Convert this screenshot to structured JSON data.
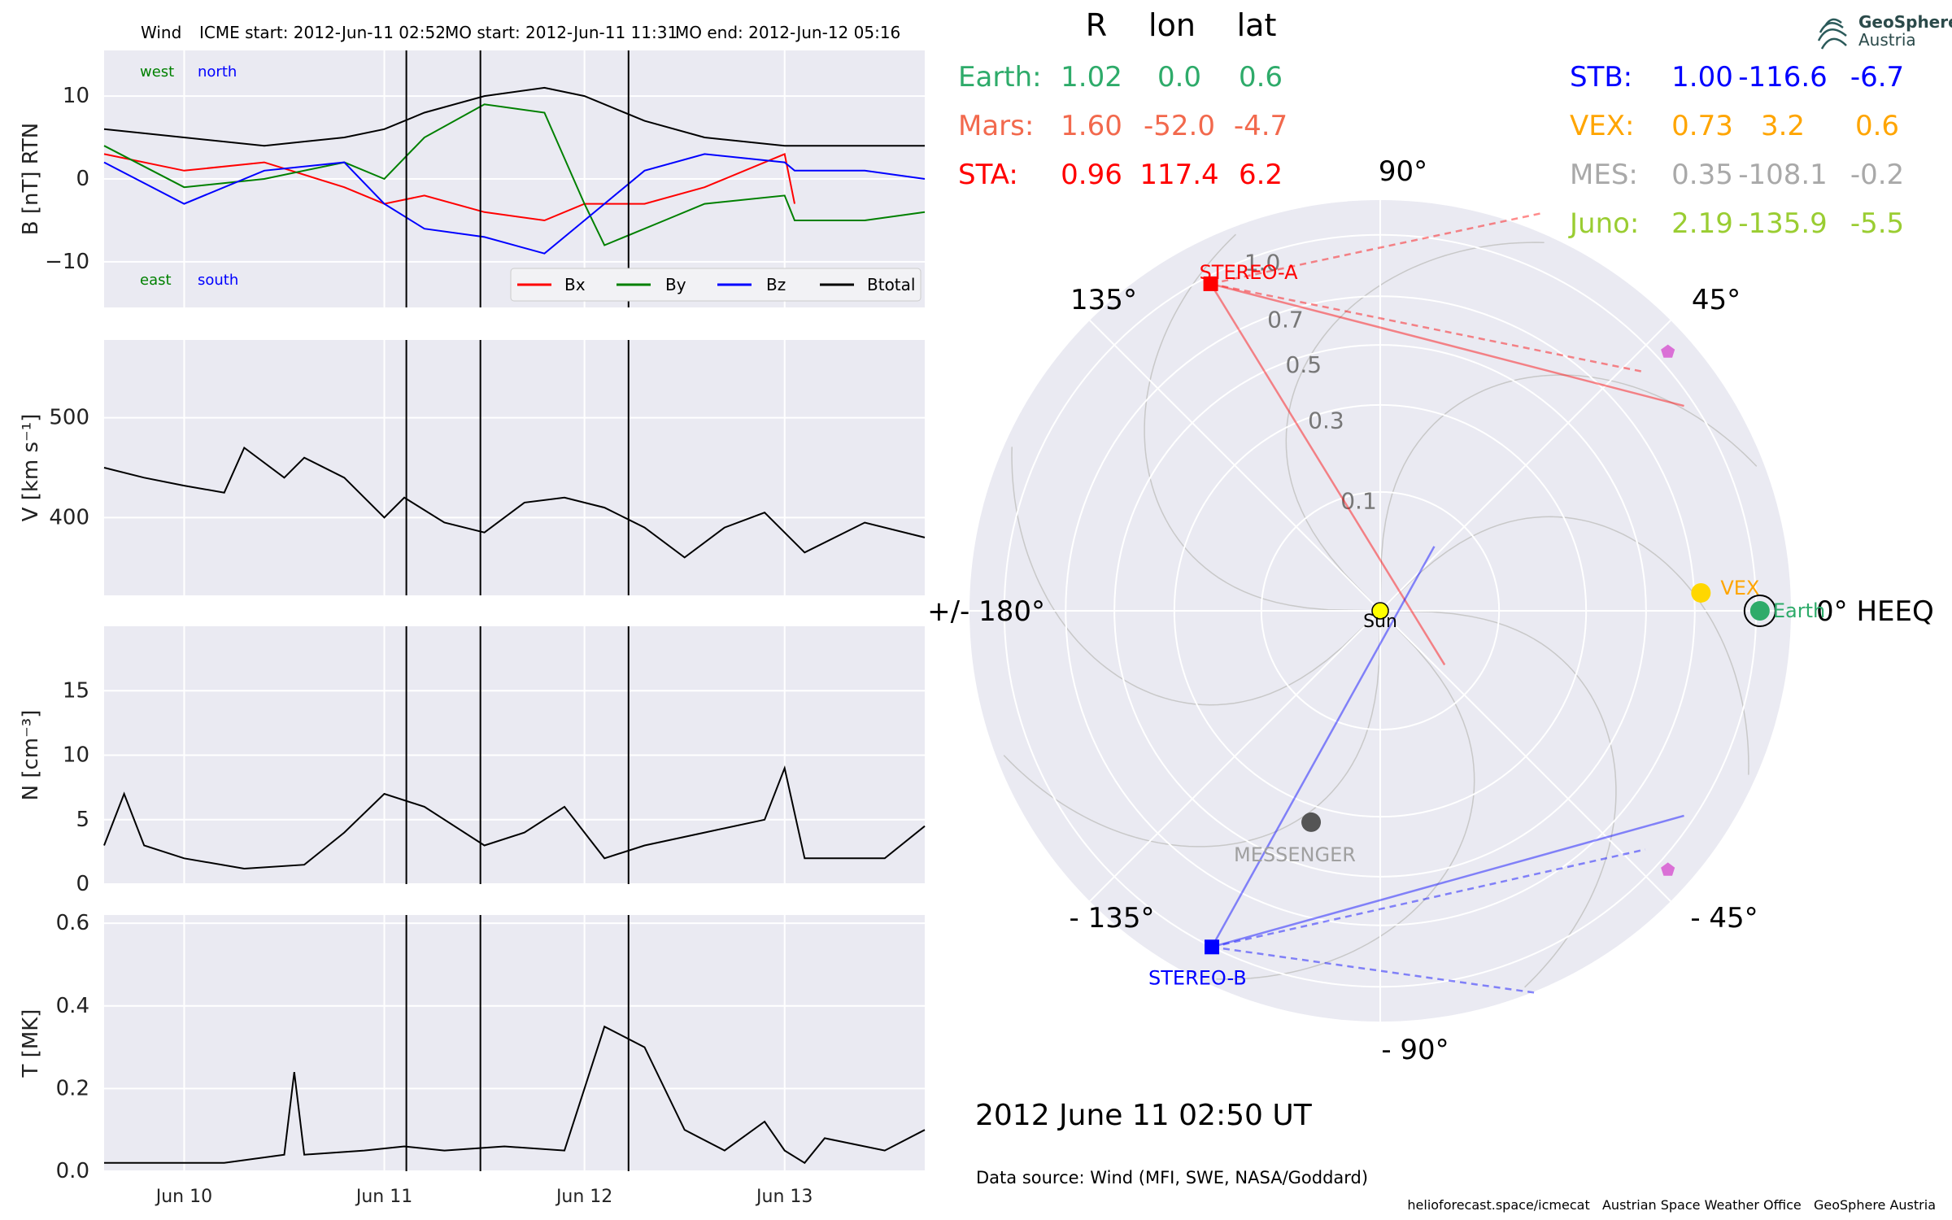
{
  "header": {
    "spacecraft": "Wind",
    "icme_start": "ICME start: 2012-Jun-11 02:52",
    "mo_start": "MO start: 2012-Jun-11 11:31",
    "mo_end": "MO end: 2012-Jun-12 05:16"
  },
  "table": {
    "columns": [
      "R",
      "lon",
      "lat"
    ],
    "left": [
      {
        "name": "Earth:",
        "R": "1.02",
        "lon": "0.0",
        "lat": "0.6",
        "color": "#2eab6a"
      },
      {
        "name": "Mars:",
        "R": "1.60",
        "lon": "-52.0",
        "lat": "-4.7",
        "color": "#f2694d"
      },
      {
        "name": "STA:",
        "R": "0.96",
        "lon": "117.4",
        "lat": "6.2",
        "color": "#ff0000"
      }
    ],
    "right": [
      {
        "name": "STB:",
        "R": "1.00",
        "lon": "-116.6",
        "lat": "-6.7",
        "color": "#0000ff"
      },
      {
        "name": "VEX:",
        "R": "0.73",
        "lon": "3.2",
        "lat": "0.6",
        "color": "#ffa500"
      },
      {
        "name": "MES:",
        "R": "0.35",
        "lon": "-108.1",
        "lat": "-0.2",
        "color": "#a9a9a9"
      },
      {
        "name": "Juno:",
        "R": "2.19",
        "lon": "-135.9",
        "lat": "-5.5",
        "color": "#9acd32"
      }
    ]
  },
  "logo": {
    "name": "GeoSphere",
    "sub": "Austria"
  },
  "polar": {
    "angle_labels": {
      "a90": "90°",
      "a45": "45°",
      "a0": "0° HEEQ",
      "am45": "- 45°",
      "am90": "- 90°",
      "am135": "- 135°",
      "a180": "+/- 180°",
      "a135": "135°"
    },
    "radial_labels": [
      "0.1",
      "0.3",
      "0.5",
      "0.7",
      "1.0"
    ],
    "radial_values": [
      0.1,
      0.3,
      0.5,
      0.7,
      1.0
    ],
    "bodies": {
      "sun": "Sun",
      "vex": "VEX",
      "earth": "Earth",
      "sta": "STEREO-A",
      "stb": "STEREO-B",
      "mes": "MESSENGER"
    },
    "colors": {
      "sta": "#ff0000",
      "stb": "#0000ff",
      "earth": "#2eab6a",
      "vex": "#ffa500",
      "mes": "#555555",
      "juno": "#da70d6",
      "sun": "#ffff00"
    }
  },
  "date": "2012 June 11  02:50 UT",
  "source": "Data source: Wind (MFI, SWE, NASA/Goddard)",
  "footer": "helioforecast.space/icmecat   Austrian Space Weather Office   GeoSphere Austria",
  "chart_data": [
    {
      "type": "line",
      "ylabel": "B [nT] RTN",
      "yticks": [
        -10,
        0,
        10
      ],
      "ylim": [
        -15.5,
        15.5
      ],
      "xticks": [
        "Jun 10",
        "Jun 11",
        "Jun 12",
        "Jun 13"
      ],
      "corner_labels": {
        "west": "west",
        "north": "north",
        "east": "east",
        "south": "south"
      },
      "legend": [
        "Bx",
        "By",
        "Bz",
        "Btotal"
      ],
      "series": [
        {
          "name": "Bx",
          "color": "#ff0000",
          "values": [
            [
              -0.4,
              3
            ],
            [
              0,
              1
            ],
            [
              0.4,
              2
            ],
            [
              0.8,
              -1
            ],
            [
              1.0,
              -3
            ],
            [
              1.2,
              -2
            ],
            [
              1.5,
              -4
            ],
            [
              1.8,
              -5
            ],
            [
              2.0,
              -3
            ],
            [
              2.3,
              -3
            ],
            [
              2.6,
              -1
            ],
            [
              3.0,
              3
            ],
            [
              3.05,
              -3
            ]
          ]
        },
        {
          "name": "By",
          "color": "#008000",
          "values": [
            [
              -0.4,
              4
            ],
            [
              0,
              -1
            ],
            [
              0.4,
              0
            ],
            [
              0.8,
              2
            ],
            [
              1.0,
              0
            ],
            [
              1.2,
              5
            ],
            [
              1.5,
              9
            ],
            [
              1.8,
              8
            ],
            [
              2.0,
              -3
            ],
            [
              2.1,
              -8
            ],
            [
              2.4,
              -5
            ],
            [
              2.6,
              -3
            ],
            [
              3.0,
              -2
            ],
            [
              3.05,
              -5
            ],
            [
              3.4,
              -5
            ],
            [
              3.7,
              -4
            ]
          ]
        },
        {
          "name": "Bz",
          "color": "#0000ff",
          "values": [
            [
              -0.4,
              2
            ],
            [
              0,
              -3
            ],
            [
              0.4,
              1
            ],
            [
              0.8,
              2
            ],
            [
              1.0,
              -3
            ],
            [
              1.2,
              -6
            ],
            [
              1.5,
              -7
            ],
            [
              1.8,
              -9
            ],
            [
              2.0,
              -5
            ],
            [
              2.3,
              1
            ],
            [
              2.6,
              3
            ],
            [
              3.0,
              2
            ],
            [
              3.05,
              1
            ],
            [
              3.4,
              1
            ],
            [
              3.7,
              0
            ]
          ]
        },
        {
          "name": "Btotal",
          "color": "#000000",
          "values": [
            [
              -0.4,
              6
            ],
            [
              0,
              5
            ],
            [
              0.4,
              4
            ],
            [
              0.8,
              5
            ],
            [
              1.0,
              6
            ],
            [
              1.2,
              8
            ],
            [
              1.5,
              10
            ],
            [
              1.8,
              11
            ],
            [
              2.0,
              10
            ],
            [
              2.3,
              7
            ],
            [
              2.6,
              5
            ],
            [
              3.0,
              4
            ],
            [
              3.05,
              4
            ],
            [
              3.4,
              4
            ],
            [
              3.7,
              4
            ]
          ]
        }
      ],
      "markers_days": [
        1.11,
        1.48,
        2.22
      ]
    },
    {
      "type": "line",
      "ylabel": "V [km s⁻¹]",
      "yticks": [
        400,
        500
      ],
      "ylim": [
        322,
        578
      ],
      "xticks": [
        "Jun 10",
        "Jun 11",
        "Jun 12",
        "Jun 13"
      ],
      "series": [
        {
          "name": "V",
          "color": "#000000",
          "values": [
            [
              -0.4,
              450
            ],
            [
              -0.2,
              440
            ],
            [
              0,
              432
            ],
            [
              0.2,
              425
            ],
            [
              0.3,
              470
            ],
            [
              0.5,
              440
            ],
            [
              0.6,
              460
            ],
            [
              0.8,
              440
            ],
            [
              1.0,
              400
            ],
            [
              1.1,
              420
            ],
            [
              1.3,
              395
            ],
            [
              1.5,
              385
            ],
            [
              1.7,
              415
            ],
            [
              1.9,
              420
            ],
            [
              2.1,
              410
            ],
            [
              2.3,
              390
            ],
            [
              2.5,
              360
            ],
            [
              2.7,
              390
            ],
            [
              2.9,
              405
            ],
            [
              3.1,
              365
            ],
            [
              3.4,
              395
            ],
            [
              3.7,
              380
            ]
          ]
        }
      ],
      "markers_days": [
        1.11,
        1.48,
        2.22
      ]
    },
    {
      "type": "line",
      "ylabel": "N [cm⁻³]",
      "yticks": [
        0,
        5,
        10,
        15
      ],
      "ylim": [
        0,
        20
      ],
      "xticks": [
        "Jun 10",
        "Jun 11",
        "Jun 12",
        "Jun 13"
      ],
      "series": [
        {
          "name": "N",
          "color": "#000000",
          "values": [
            [
              -0.4,
              3
            ],
            [
              -0.3,
              7
            ],
            [
              -0.2,
              3
            ],
            [
              0,
              2
            ],
            [
              0.3,
              1.2
            ],
            [
              0.6,
              1.5
            ],
            [
              0.8,
              4
            ],
            [
              1.0,
              7
            ],
            [
              1.2,
              6
            ],
            [
              1.5,
              3
            ],
            [
              1.7,
              4
            ],
            [
              1.9,
              6
            ],
            [
              2.1,
              2
            ],
            [
              2.3,
              3
            ],
            [
              2.6,
              4
            ],
            [
              2.9,
              5
            ],
            [
              3.0,
              9
            ],
            [
              3.1,
              2
            ],
            [
              3.5,
              2
            ],
            [
              3.7,
              4.5
            ]
          ]
        }
      ],
      "markers_days": [
        1.11,
        1.48,
        2.22
      ]
    },
    {
      "type": "line",
      "ylabel": "T [MK]",
      "yticks": [
        0.0,
        0.2,
        0.4,
        0.6
      ],
      "ylim": [
        0,
        0.62
      ],
      "xticks": [
        "Jun 10",
        "Jun 11",
        "Jun 12",
        "Jun 13"
      ],
      "series": [
        {
          "name": "T",
          "color": "#000000",
          "values": [
            [
              -0.4,
              0.02
            ],
            [
              0.2,
              0.02
            ],
            [
              0.5,
              0.04
            ],
            [
              0.55,
              0.24
            ],
            [
              0.6,
              0.04
            ],
            [
              0.9,
              0.05
            ],
            [
              1.1,
              0.06
            ],
            [
              1.3,
              0.05
            ],
            [
              1.6,
              0.06
            ],
            [
              1.9,
              0.05
            ],
            [
              2.0,
              0.2
            ],
            [
              2.1,
              0.35
            ],
            [
              2.3,
              0.3
            ],
            [
              2.5,
              0.1
            ],
            [
              2.7,
              0.05
            ],
            [
              2.9,
              0.12
            ],
            [
              3.0,
              0.05
            ],
            [
              3.1,
              0.02
            ],
            [
              3.2,
              0.08
            ],
            [
              3.5,
              0.05
            ],
            [
              3.7,
              0.1
            ]
          ]
        }
      ],
      "markers_days": [
        1.11,
        1.48,
        2.22
      ]
    }
  ]
}
